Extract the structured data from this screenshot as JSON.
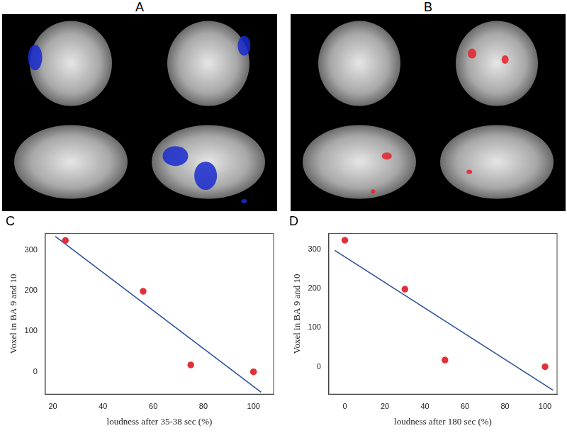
{
  "images": [
    {
      "label": "A",
      "color": "#1a2ccf"
    },
    {
      "label": "B",
      "color": "#e8202a"
    }
  ],
  "chart_data": [
    {
      "type": "scatter",
      "title": "C",
      "x_label": "loudness after 35-38 sec (%)",
      "y_label": "Voxel in BA 9 and 10",
      "xlim": [
        17,
        108
      ],
      "xticks": [
        20,
        40,
        60,
        80,
        100
      ],
      "ylim": [
        -55,
        340
      ],
      "yticks": [
        0,
        100,
        200,
        300
      ],
      "grid": false,
      "series": [
        {
          "type": "scatter",
          "color": "#e0303a",
          "marker": "circle",
          "x": [
            25,
            56,
            75,
            100
          ],
          "values": [
            323,
            198,
            17,
            0
          ]
        },
        {
          "type": "line",
          "color": "#2a4d9b",
          "line_style": "solid",
          "x": [
            21,
            103
          ],
          "values": [
            333,
            -50
          ]
        }
      ]
    },
    {
      "type": "scatter",
      "title": "D",
      "x_label": "loudness after 180 sec (%)",
      "y_label": "Voxel in BA 9 and 10",
      "xlim": [
        -8,
        106
      ],
      "xticks": [
        0,
        20,
        40,
        60,
        80,
        100
      ],
      "ylim": [
        -70,
        340
      ],
      "yticks": [
        0,
        100,
        200,
        300
      ],
      "grid": false,
      "series": [
        {
          "type": "scatter",
          "color": "#e0303a",
          "marker": "circle",
          "x": [
            0,
            30,
            50,
            100
          ],
          "values": [
            323,
            198,
            17,
            0
          ]
        },
        {
          "type": "line",
          "color": "#2a4d9b",
          "line_style": "solid",
          "x": [
            -5,
            104
          ],
          "values": [
            297,
            -60
          ]
        }
      ]
    }
  ]
}
